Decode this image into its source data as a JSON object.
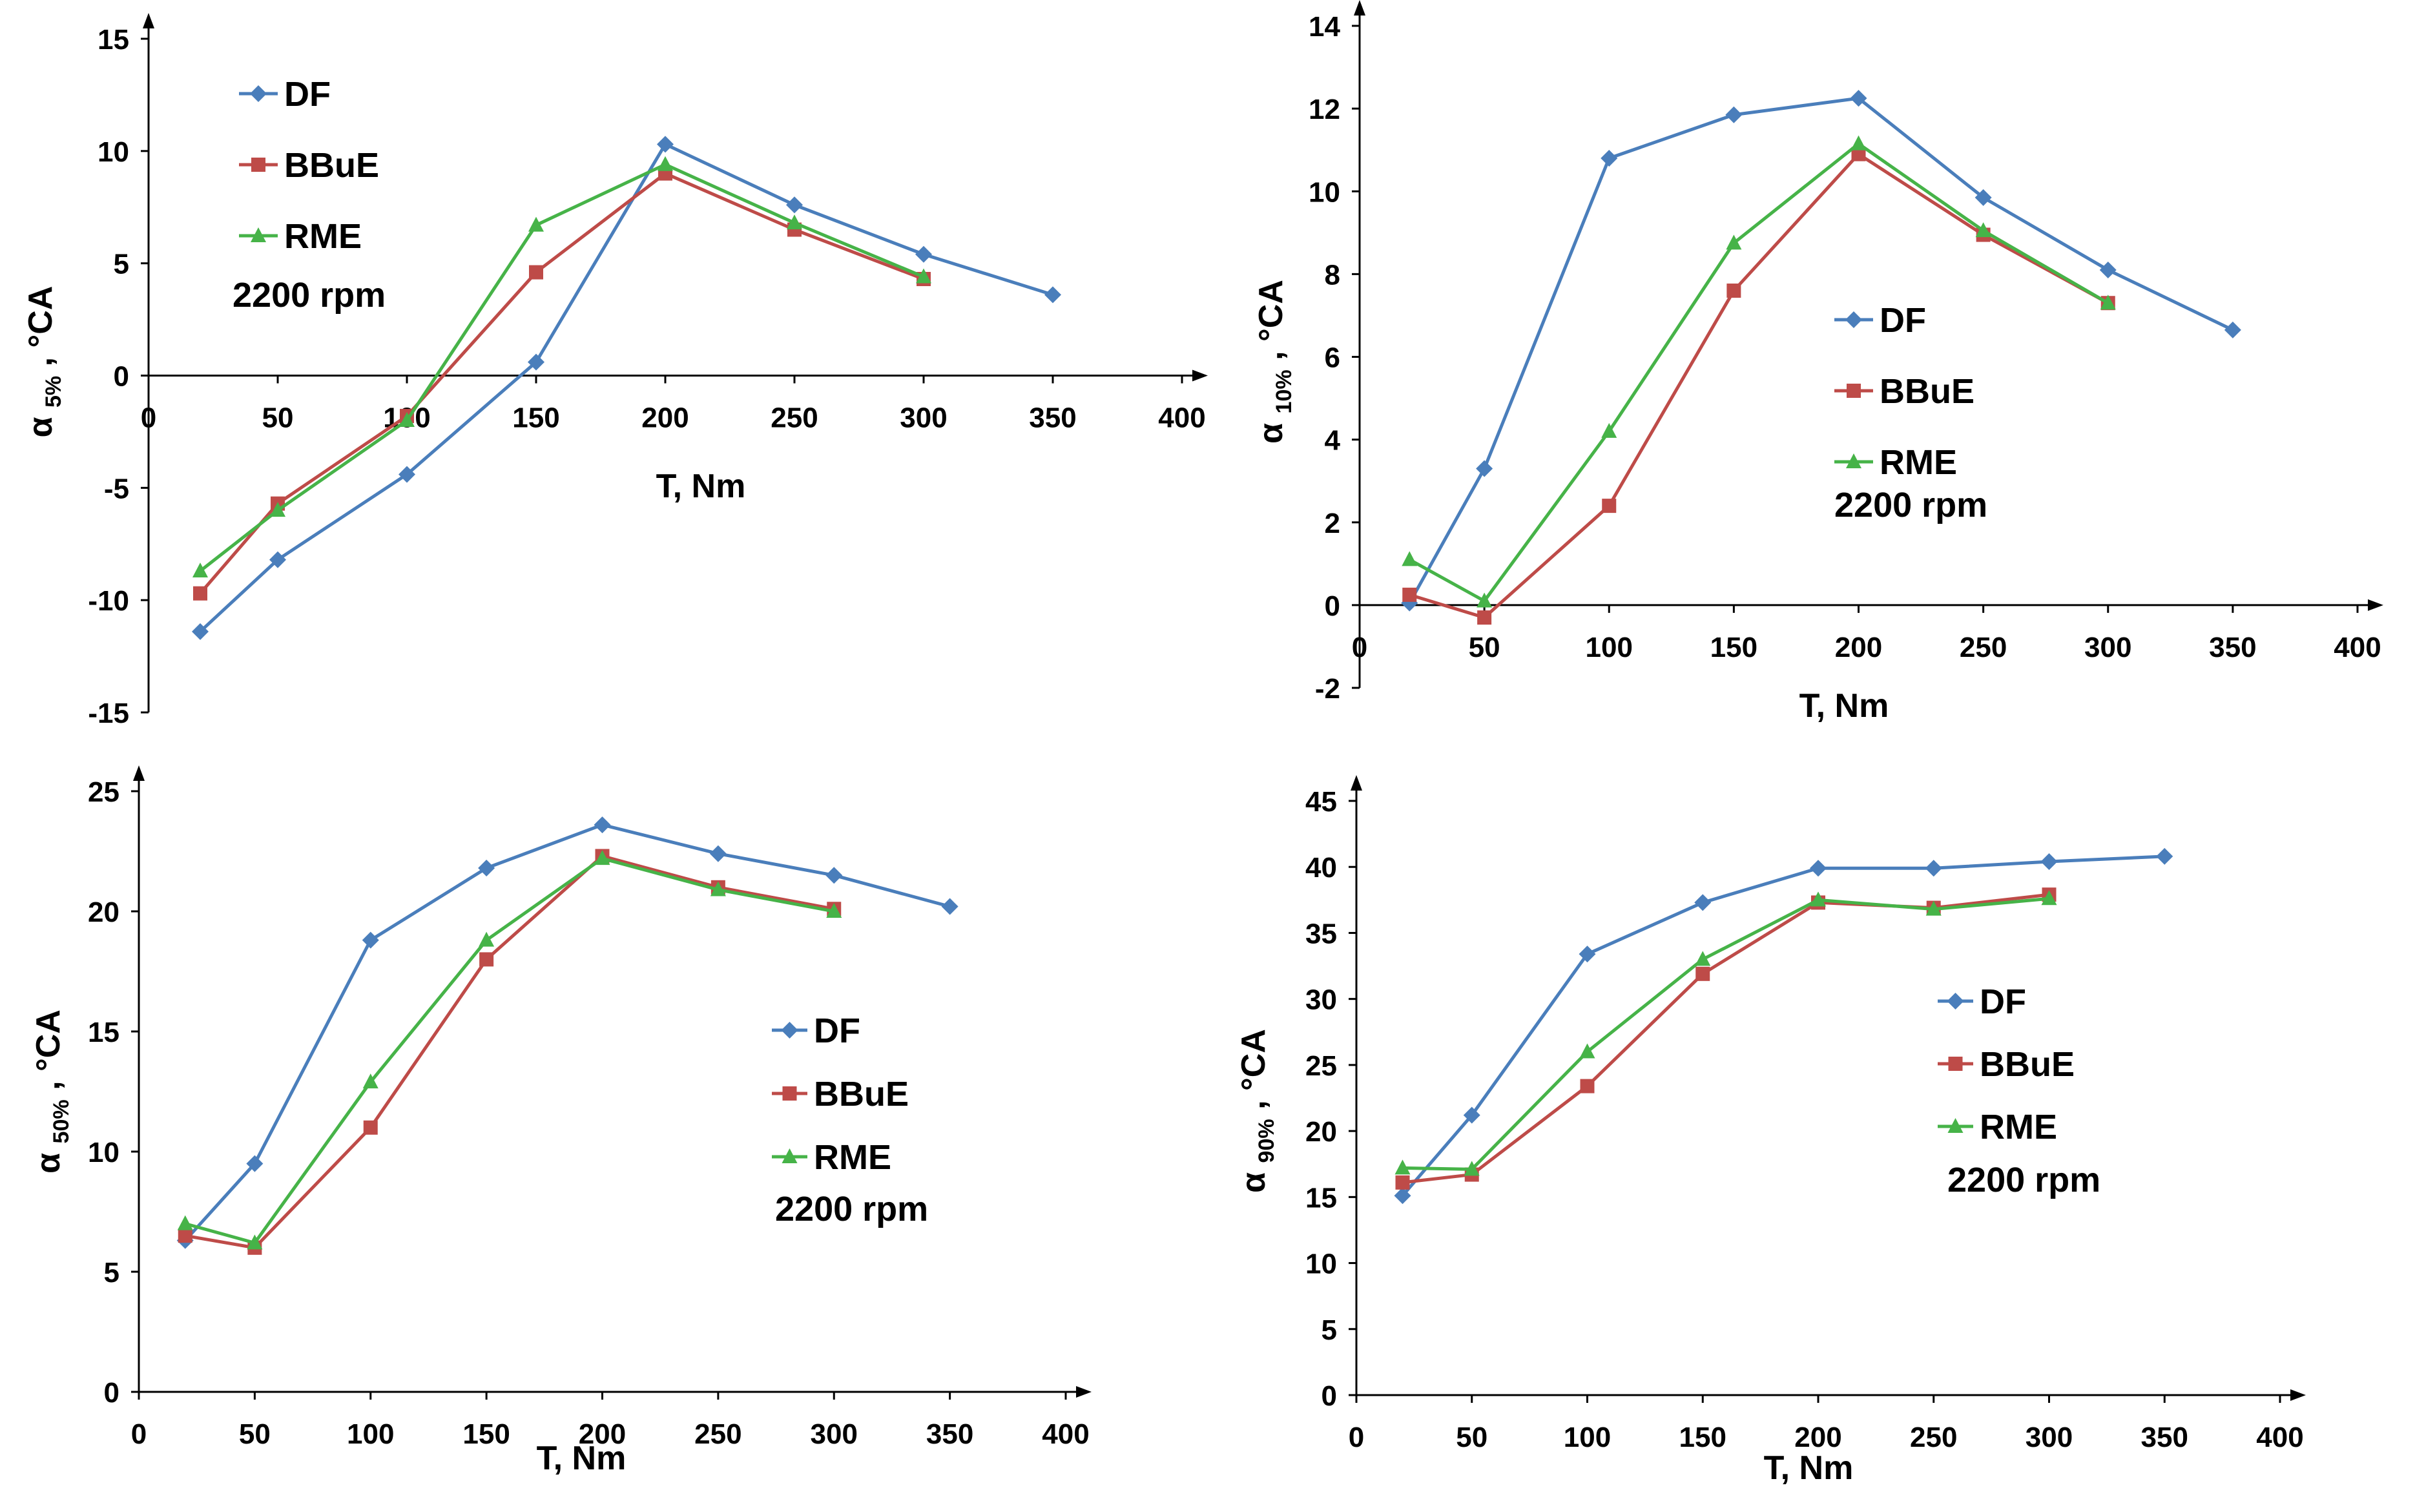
{
  "colors": {
    "DF": "#4a7ebb",
    "BBuE": "#be4b48",
    "RME": "#46b348"
  },
  "chart_data": [
    {
      "type": "line",
      "id": "a5",
      "ylabel_main": "α",
      "ylabel_sub": "5%",
      "ylabel_unit": " , °CA",
      "xlabel": "T, Nm",
      "xlim": [
        0,
        400
      ],
      "ylim": [
        -15,
        15
      ],
      "xticks": [
        "0",
        "50",
        "100",
        "150",
        "200",
        "250",
        "300",
        "350",
        "400"
      ],
      "yticks": [
        "-15",
        "-10",
        "-5",
        "0",
        "5",
        "10",
        "15"
      ],
      "legend_position": "top-left",
      "note": "2200 rpm",
      "series": [
        {
          "name": "DF",
          "marker": "diamond",
          "x": [
            20,
            50,
            100,
            150,
            200,
            250,
            300,
            350
          ],
          "y": [
            -11.4,
            -8.2,
            -4.4,
            0.6,
            10.3,
            7.6,
            5.4,
            3.6
          ]
        },
        {
          "name": "BBuE",
          "marker": "square",
          "x": [
            20,
            50,
            100,
            150,
            200,
            250,
            300
          ],
          "y": [
            -9.7,
            -5.7,
            -1.8,
            4.6,
            9.0,
            6.5,
            4.3
          ]
        },
        {
          "name": "RME",
          "marker": "triangle",
          "x": [
            20,
            50,
            100,
            150,
            200,
            250,
            300
          ],
          "y": [
            -8.7,
            -6.0,
            -2.0,
            6.7,
            9.4,
            6.8,
            4.4
          ]
        }
      ]
    },
    {
      "type": "line",
      "id": "a10",
      "ylabel_main": "α",
      "ylabel_sub": "10%",
      "ylabel_unit": " , °CA",
      "xlabel": "T, Nm",
      "xlim": [
        0,
        400
      ],
      "ylim": [
        -2,
        14
      ],
      "xticks": [
        "0",
        "50",
        "100",
        "150",
        "200",
        "250",
        "300",
        "350",
        "400"
      ],
      "yticks": [
        "-2",
        "0",
        "2",
        "4",
        "6",
        "8",
        "10",
        "12",
        "14"
      ],
      "legend_position": "center",
      "note": "2200 rpm",
      "series": [
        {
          "name": "DF",
          "marker": "diamond",
          "x": [
            20,
            50,
            100,
            150,
            200,
            250,
            300,
            350
          ],
          "y": [
            0.05,
            3.3,
            10.8,
            11.85,
            12.25,
            9.85,
            8.1,
            6.65
          ]
        },
        {
          "name": "BBuE",
          "marker": "square",
          "x": [
            20,
            50,
            100,
            150,
            200,
            250,
            300
          ],
          "y": [
            0.25,
            -0.3,
            2.4,
            7.6,
            10.9,
            8.95,
            7.3
          ]
        },
        {
          "name": "RME",
          "marker": "triangle",
          "x": [
            20,
            50,
            100,
            150,
            200,
            250,
            300
          ],
          "y": [
            1.1,
            0.1,
            4.2,
            8.75,
            11.15,
            9.05,
            7.3
          ]
        }
      ]
    },
    {
      "type": "line",
      "id": "a50",
      "ylabel_main": "α",
      "ylabel_sub": "50%",
      "ylabel_unit": " , °CA",
      "xlabel": "T, Nm",
      "xlim": [
        0,
        400
      ],
      "ylim": [
        0,
        25
      ],
      "xticks": [
        "0",
        "50",
        "100",
        "150",
        "200",
        "250",
        "300",
        "350",
        "400"
      ],
      "yticks": [
        "0",
        "5",
        "10",
        "15",
        "20",
        "25"
      ],
      "legend_position": "right",
      "note": "2200 rpm",
      "series": [
        {
          "name": "DF",
          "marker": "diamond",
          "x": [
            20,
            50,
            100,
            150,
            200,
            250,
            300,
            350
          ],
          "y": [
            6.3,
            9.5,
            18.8,
            21.8,
            23.6,
            22.4,
            21.5,
            20.2
          ]
        },
        {
          "name": "BBuE",
          "marker": "square",
          "x": [
            20,
            50,
            100,
            150,
            200,
            250,
            300
          ],
          "y": [
            6.5,
            6.0,
            11.0,
            18.0,
            22.3,
            21.0,
            20.1
          ]
        },
        {
          "name": "RME",
          "marker": "triangle",
          "x": [
            20,
            50,
            100,
            150,
            200,
            250,
            300
          ],
          "y": [
            7.0,
            6.2,
            12.9,
            18.8,
            22.2,
            20.9,
            20.0
          ]
        }
      ]
    },
    {
      "type": "line",
      "id": "a90",
      "ylabel_main": "α",
      "ylabel_sub": "90%",
      "ylabel_unit": " , °CA",
      "xlabel": "T, Nm",
      "xlim": [
        0,
        400
      ],
      "ylim": [
        0,
        45
      ],
      "xticks": [
        "0",
        "50",
        "100",
        "150",
        "200",
        "250",
        "300",
        "350",
        "400"
      ],
      "yticks": [
        "0",
        "5",
        "10",
        "15",
        "20",
        "25",
        "30",
        "35",
        "40",
        "45"
      ],
      "legend_position": "right",
      "note": "2200 rpm",
      "series": [
        {
          "name": "DF",
          "marker": "diamond",
          "x": [
            20,
            50,
            100,
            150,
            200,
            250,
            300,
            350
          ],
          "y": [
            15.1,
            21.2,
            33.4,
            37.3,
            39.9,
            39.9,
            40.4,
            40.8
          ]
        },
        {
          "name": "BBuE",
          "marker": "square",
          "x": [
            20,
            50,
            100,
            150,
            200,
            250,
            300
          ],
          "y": [
            16.1,
            16.7,
            23.4,
            31.9,
            37.3,
            36.9,
            37.9
          ]
        },
        {
          "name": "RME",
          "marker": "triangle",
          "x": [
            20,
            50,
            100,
            150,
            200,
            250,
            300
          ],
          "y": [
            17.2,
            17.1,
            26.0,
            33.0,
            37.5,
            36.8,
            37.6
          ]
        }
      ]
    }
  ]
}
